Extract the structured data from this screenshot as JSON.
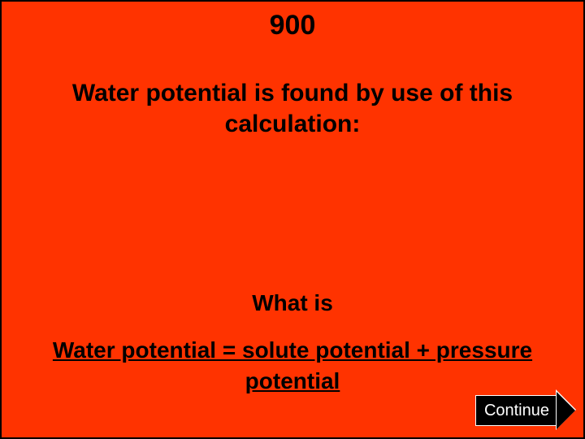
{
  "slide": {
    "background_color": "#ff3300",
    "text_color": "#000000",
    "font_family": "Verdana",
    "font_weight": "bold"
  },
  "points": {
    "value": "900",
    "fontsize": 34
  },
  "question": {
    "text": "Water potential is found by use of this calculation:",
    "fontsize": 30
  },
  "answer_lead": {
    "text": "What is",
    "fontsize": 28
  },
  "answer": {
    "text": "Water potential = solute potential + pressure potential",
    "fontsize": 28,
    "underline": true
  },
  "continue_button": {
    "label": "Continue",
    "bg_color": "#000000",
    "text_color": "#ffffff",
    "border_color": "#ffffff",
    "fontsize": 20,
    "shape": "right-arrow"
  }
}
